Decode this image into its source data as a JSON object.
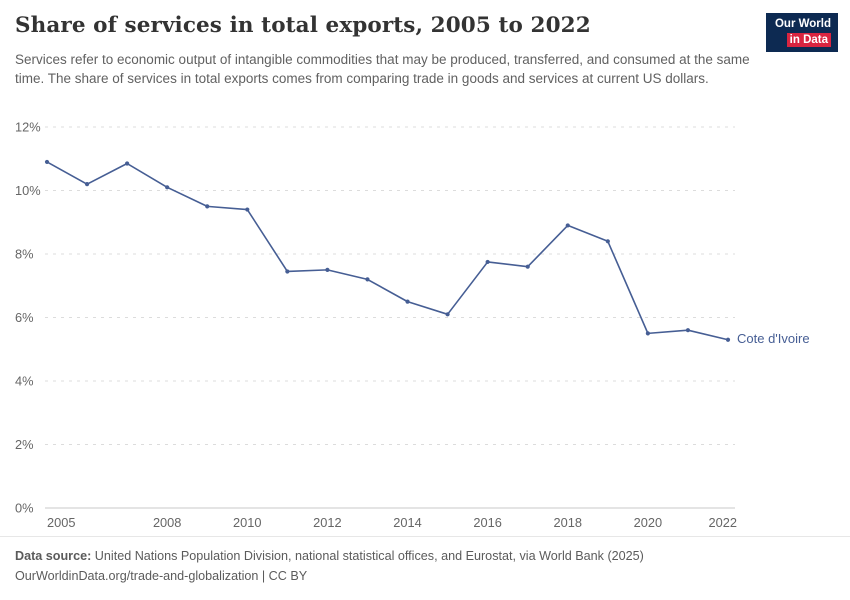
{
  "header": {
    "title": "Share of services in total exports, 2005 to 2022",
    "subtitle": "Services refer to economic output of intangible commodities that may be produced, transferred, and consumed at the same time. The share of services in total exports comes from comparing trade in goods and services at current US dollars.",
    "logo": {
      "line1": "Our World",
      "line2": "in Data"
    }
  },
  "colors": {
    "line": "#465e94",
    "logo_navy": "#0d2a52",
    "logo_red": "#d92540",
    "grid": "#dcdcdc",
    "baseline": "#c8c8c8",
    "axis_text": "#666666"
  },
  "chart_data": {
    "type": "line",
    "title": "Share of services in total exports, 2005 to 2022",
    "xlabel": "",
    "ylabel": "",
    "xlim": [
      2005,
      2022
    ],
    "ylim": [
      0,
      12
    ],
    "grid": "horizontal-dashed",
    "legend_position": "end-of-line-label",
    "x_ticks": [
      2005,
      2008,
      2010,
      2012,
      2014,
      2016,
      2018,
      2020,
      2022
    ],
    "y_ticks": [
      {
        "value": 0,
        "label": "0%"
      },
      {
        "value": 2,
        "label": "2%"
      },
      {
        "value": 4,
        "label": "4%"
      },
      {
        "value": 6,
        "label": "6%"
      },
      {
        "value": 8,
        "label": "8%"
      },
      {
        "value": 10,
        "label": "10%"
      },
      {
        "value": 12,
        "label": "12%"
      }
    ],
    "series": [
      {
        "name": "Cote d'Ivoire",
        "color": "#465e94",
        "x": [
          2005,
          2006,
          2007,
          2008,
          2009,
          2010,
          2011,
          2012,
          2013,
          2014,
          2015,
          2016,
          2017,
          2018,
          2019,
          2020,
          2021,
          2022
        ],
        "values": [
          10.9,
          10.2,
          10.85,
          10.1,
          9.5,
          9.4,
          7.45,
          7.5,
          7.2,
          6.5,
          6.1,
          7.75,
          7.6,
          8.9,
          8.4,
          5.5,
          5.6,
          5.3
        ]
      }
    ]
  },
  "footer": {
    "datasource_label": "Data source:",
    "datasource_text": " United Nations Population Division, national statistical offices, and Eurostat, via World Bank (2025)",
    "link_text": "OurWorldinData.org/trade-and-globalization | CC BY"
  }
}
